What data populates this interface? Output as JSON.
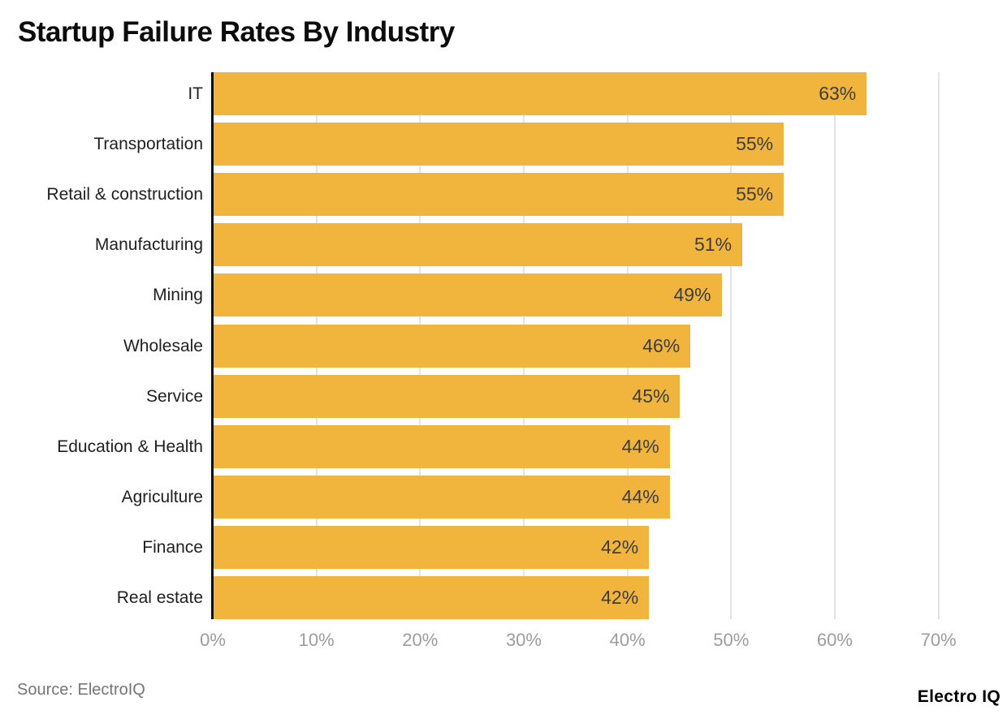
{
  "title": "Startup Failure Rates By Industry",
  "footer": {
    "source": "Source: ElectroIQ",
    "brand": "Electro IQ"
  },
  "colors": {
    "bar": "#F1B53E",
    "axis": "#101010",
    "grid": "#E4E4E4",
    "tick_label": "#9C9C9C",
    "value_label": "#3D3D3D",
    "category_label": "#1F1F1F",
    "background": "#FFFFFF"
  },
  "chart_data": {
    "type": "bar",
    "orientation": "horizontal",
    "title": "Startup Failure Rates By Industry",
    "categories": [
      "IT",
      "Transportation",
      "Retail & construction",
      "Manufacturing",
      "Mining",
      "Wholesale",
      "Service",
      "Education & Health",
      "Agriculture",
      "Finance",
      "Real estate"
    ],
    "values": [
      63,
      55,
      55,
      51,
      49,
      46,
      45,
      44,
      44,
      42,
      42
    ],
    "value_labels": [
      "63%",
      "55%",
      "55%",
      "51%",
      "49%",
      "46%",
      "45%",
      "44%",
      "44%",
      "42%",
      "42%"
    ],
    "xlim": [
      0,
      70
    ],
    "x_tick_values": [
      0,
      10,
      20,
      30,
      40,
      50,
      60,
      70
    ],
    "x_tick_labels": [
      "0%",
      "10%",
      "20%",
      "30%",
      "40%",
      "50%",
      "60%",
      "70%"
    ],
    "grid": "vertical",
    "legend": false,
    "value_label_position": "inside-end",
    "source": "Source: ElectroIQ"
  }
}
